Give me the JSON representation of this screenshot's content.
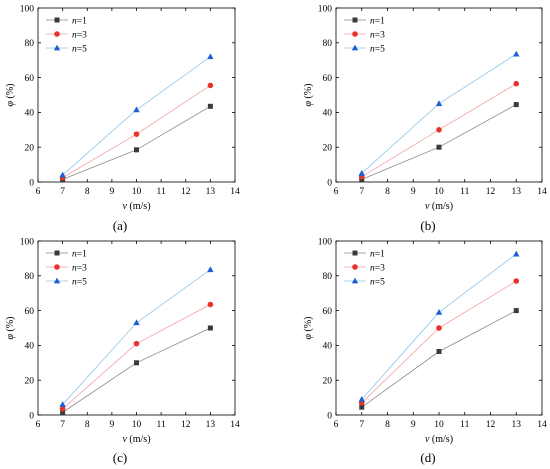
{
  "colors": {
    "n1": "#3a3a3a",
    "n3": "#e8322d",
    "n5": "#1a5fd6",
    "n1_line": "#8a8a8a",
    "n3_line": "#f1a3a3",
    "n5_line": "#8fc6ea"
  },
  "chart_data": [
    {
      "type": "line",
      "label": "(a)",
      "xlabel_var": "v",
      "xlabel_unit": " (m/s)",
      "ylabel_var": "φ",
      "ylabel_unit": " (%)",
      "xlim": [
        6,
        14
      ],
      "ylim": [
        0,
        100
      ],
      "xticks": [
        6,
        7,
        8,
        9,
        10,
        11,
        12,
        13,
        14
      ],
      "yticks": [
        0,
        20,
        40,
        60,
        80,
        100
      ],
      "grid": false,
      "legend_position": "top-left",
      "x": [
        7,
        10,
        13
      ],
      "series": [
        {
          "var": "n",
          "eq": "=1",
          "marker": "square",
          "values": [
            1.5,
            18.5,
            43.5
          ]
        },
        {
          "var": "n",
          "eq": "=3",
          "marker": "circle",
          "values": [
            2.5,
            27.5,
            55.5
          ]
        },
        {
          "var": "n",
          "eq": "=5",
          "marker": "triangle",
          "values": [
            4,
            41.5,
            72
          ]
        }
      ]
    },
    {
      "type": "line",
      "label": "(b)",
      "xlabel_var": "v",
      "xlabel_unit": " (m/s)",
      "ylabel_var": "φ",
      "ylabel_unit": " (%)",
      "xlim": [
        6,
        14
      ],
      "ylim": [
        0,
        100
      ],
      "xticks": [
        6,
        7,
        8,
        9,
        10,
        11,
        12,
        13,
        14
      ],
      "yticks": [
        0,
        20,
        40,
        60,
        80,
        100
      ],
      "grid": false,
      "legend_position": "top-left",
      "x": [
        7,
        10,
        13
      ],
      "series": [
        {
          "var": "n",
          "eq": "=1",
          "marker": "square",
          "values": [
            1.5,
            20,
            44.5
          ]
        },
        {
          "var": "n",
          "eq": "=3",
          "marker": "circle",
          "values": [
            3,
            30,
            56.5
          ]
        },
        {
          "var": "n",
          "eq": "=5",
          "marker": "triangle",
          "values": [
            5,
            45,
            73.5
          ]
        }
      ]
    },
    {
      "type": "line",
      "label": "(c)",
      "xlabel_var": "v",
      "xlabel_unit": " (m/s)",
      "ylabel_var": "φ",
      "ylabel_unit": " (%)",
      "xlim": [
        6,
        14
      ],
      "ylim": [
        0,
        100
      ],
      "xticks": [
        6,
        7,
        8,
        9,
        10,
        11,
        12,
        13,
        14
      ],
      "yticks": [
        0,
        20,
        40,
        60,
        80,
        100
      ],
      "grid": false,
      "legend_position": "top-left",
      "x": [
        7,
        10,
        13
      ],
      "series": [
        {
          "var": "n",
          "eq": "=1",
          "marker": "square",
          "values": [
            1.5,
            30,
            50
          ]
        },
        {
          "var": "n",
          "eq": "=3",
          "marker": "circle",
          "values": [
            3.5,
            41,
            63.5
          ]
        },
        {
          "var": "n",
          "eq": "=5",
          "marker": "triangle",
          "values": [
            6,
            53,
            83.5
          ]
        }
      ]
    },
    {
      "type": "line",
      "label": "(d)",
      "xlabel_var": "v",
      "xlabel_unit": " (m/s)",
      "ylabel_var": "φ",
      "ylabel_unit": " (%)",
      "xlim": [
        6,
        14
      ],
      "ylim": [
        0,
        100
      ],
      "xticks": [
        6,
        7,
        8,
        9,
        10,
        11,
        12,
        13,
        14
      ],
      "yticks": [
        0,
        20,
        40,
        60,
        80,
        100
      ],
      "grid": false,
      "legend_position": "top-left",
      "x": [
        7,
        10,
        13
      ],
      "series": [
        {
          "var": "n",
          "eq": "=1",
          "marker": "square",
          "values": [
            4.5,
            36.5,
            60
          ]
        },
        {
          "var": "n",
          "eq": "=3",
          "marker": "circle",
          "values": [
            7,
            50,
            77
          ]
        },
        {
          "var": "n",
          "eq": "=5",
          "marker": "triangle",
          "values": [
            9,
            59,
            92.5
          ]
        }
      ]
    }
  ]
}
